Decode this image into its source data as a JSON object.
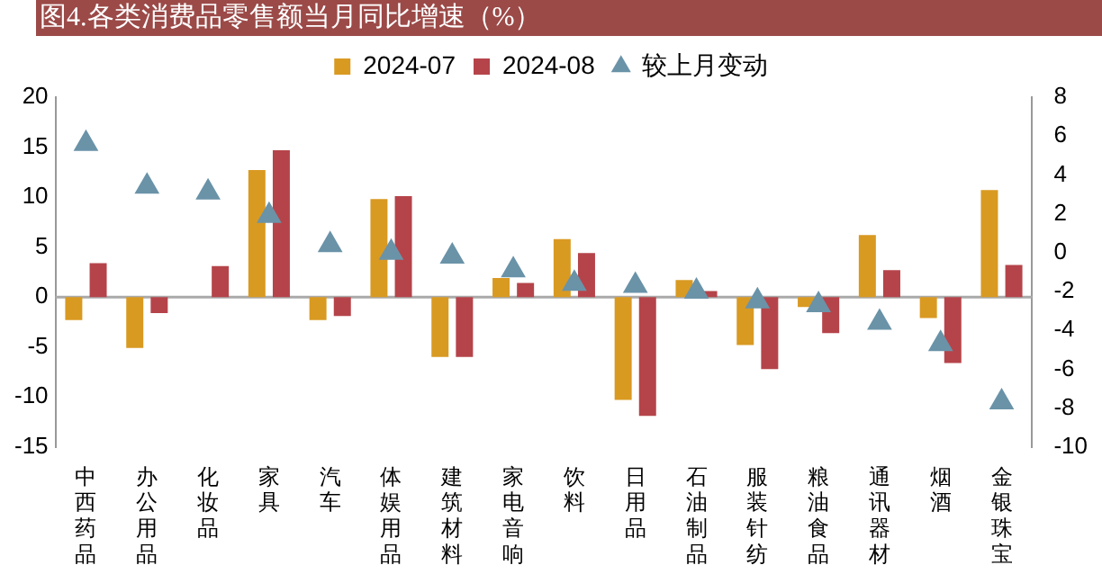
{
  "chart_data": {
    "type": "bar",
    "title": "图4.各类消费品零售额当月同比增速（%）",
    "categories": [
      "中西药品",
      "办公用品",
      "化妆品",
      "家具",
      "汽车",
      "体娱用品",
      "建筑材料",
      "家电音响",
      "饮料",
      "日用品",
      "石油制品",
      "服装针纺",
      "粮油食品",
      "通讯器材",
      "烟酒",
      "金银珠宝"
    ],
    "series": [
      {
        "name": "2024-07",
        "color": "#d99a22",
        "values": [
          -2.3,
          -5.1,
          0,
          12.7,
          -2.3,
          9.8,
          -6.0,
          1.9,
          5.8,
          -10.3,
          1.7,
          -4.8,
          -1.0,
          6.2,
          -2.1,
          10.7
        ]
      },
      {
        "name": "2024-08",
        "color": "#b5444a",
        "values": [
          3.4,
          -1.6,
          3.1,
          14.7,
          -1.9,
          10.1,
          -6.0,
          1.4,
          4.4,
          -11.9,
          0.6,
          -7.2,
          -3.6,
          2.7,
          -6.6,
          3.2
        ]
      },
      {
        "name": "较上月变动",
        "type": "scatter",
        "axis": "y2",
        "marker": "triangle",
        "color": "#6a93a8",
        "values": [
          5.6,
          3.4,
          3.1,
          1.9,
          0.4,
          0.0,
          -0.2,
          -0.9,
          -1.6,
          -1.7,
          -2.0,
          -2.5,
          -2.7,
          -3.6,
          -4.7,
          -7.7
        ]
      }
    ],
    "ylim": [
      -15,
      20
    ],
    "yticks": [
      -15,
      -10,
      -5,
      0,
      5,
      10,
      15,
      20
    ],
    "y2lim": [
      -10,
      8
    ],
    "y2ticks": [
      -10,
      -8,
      -6,
      -4,
      -2,
      0,
      2,
      4,
      6,
      8
    ],
    "ref_lines": [
      {
        "axis": "y",
        "value": 0,
        "color": "#aaaaaa"
      }
    ],
    "grid": false,
    "legend": "top"
  }
}
